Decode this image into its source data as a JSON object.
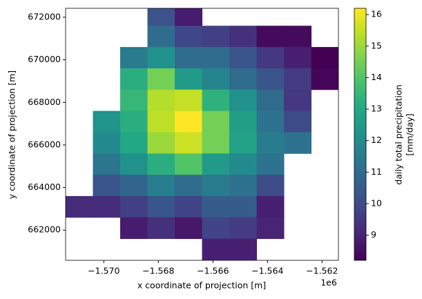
{
  "chart_data": {
    "type": "heatmap",
    "x_label": "x coordinate of projection [m]",
    "y_label": "y coordinate of projection [m]",
    "x_offset_label": "1e6",
    "colorbar_label": [
      "daily total precipitation",
      "[mm/day]"
    ],
    "colormap": "viridis",
    "clim": [
      8.2,
      16.2
    ],
    "x": [
      -1570900,
      -1569900,
      -1568900,
      -1567900,
      -1566900,
      -1565900,
      -1564900,
      -1563900,
      -1562900,
      -1561900
    ],
    "y": [
      672100,
      671100,
      670100,
      669100,
      668100,
      667100,
      666100,
      665100,
      664100,
      663100,
      662100,
      661100
    ],
    "values": [
      [
        null,
        null,
        null,
        10.2,
        8.8,
        null,
        null,
        null,
        null,
        null
      ],
      [
        null,
        null,
        null,
        11,
        9.9,
        9.7,
        9.3,
        8.4,
        8.4,
        null
      ],
      [
        null,
        null,
        11.5,
        12.2,
        11,
        11,
        10.3,
        9.5,
        8.9,
        8.2
      ],
      [
        null,
        null,
        13.2,
        14.5,
        12.5,
        11.8,
        11,
        10.3,
        9.6,
        8.3
      ],
      [
        null,
        null,
        13.5,
        15.3,
        15.5,
        13.3,
        12.2,
        11,
        9.5,
        null
      ],
      [
        null,
        12.3,
        13.2,
        15.4,
        16.2,
        14.5,
        12.7,
        11.2,
        10,
        null
      ],
      [
        null,
        12,
        13,
        15,
        15.6,
        14.5,
        12.8,
        11.5,
        11.2,
        null
      ],
      [
        null,
        11.3,
        12.2,
        13.2,
        14,
        12.5,
        12,
        11.2,
        null,
        null
      ],
      [
        null,
        10.3,
        10.8,
        11.6,
        11,
        11.5,
        11.2,
        10,
        null,
        null
      ],
      [
        9.2,
        9.2,
        9.7,
        10.3,
        9.8,
        10.5,
        10.5,
        8.9,
        null,
        null
      ],
      [
        null,
        null,
        8.8,
        9.3,
        8.7,
        9.8,
        9.6,
        9,
        null,
        null
      ],
      [
        null,
        null,
        null,
        null,
        null,
        8.9,
        8.9,
        null,
        null,
        null
      ]
    ],
    "xlim": [
      -1571400,
      -1561400
    ],
    "ylim": [
      660580,
      672420
    ],
    "xticks": [
      {
        "value": -1570000,
        "label": "−1.570"
      },
      {
        "value": -1568000,
        "label": "−1.568"
      },
      {
        "value": -1566000,
        "label": "−1.566"
      },
      {
        "value": -1564000,
        "label": "−1.564"
      },
      {
        "value": -1562000,
        "label": "−1.562"
      }
    ],
    "yticks": [
      662000,
      664000,
      666000,
      668000,
      670000,
      672000
    ],
    "colorbar_ticks": [
      9,
      10,
      11,
      12,
      13,
      14,
      15,
      16
    ]
  }
}
